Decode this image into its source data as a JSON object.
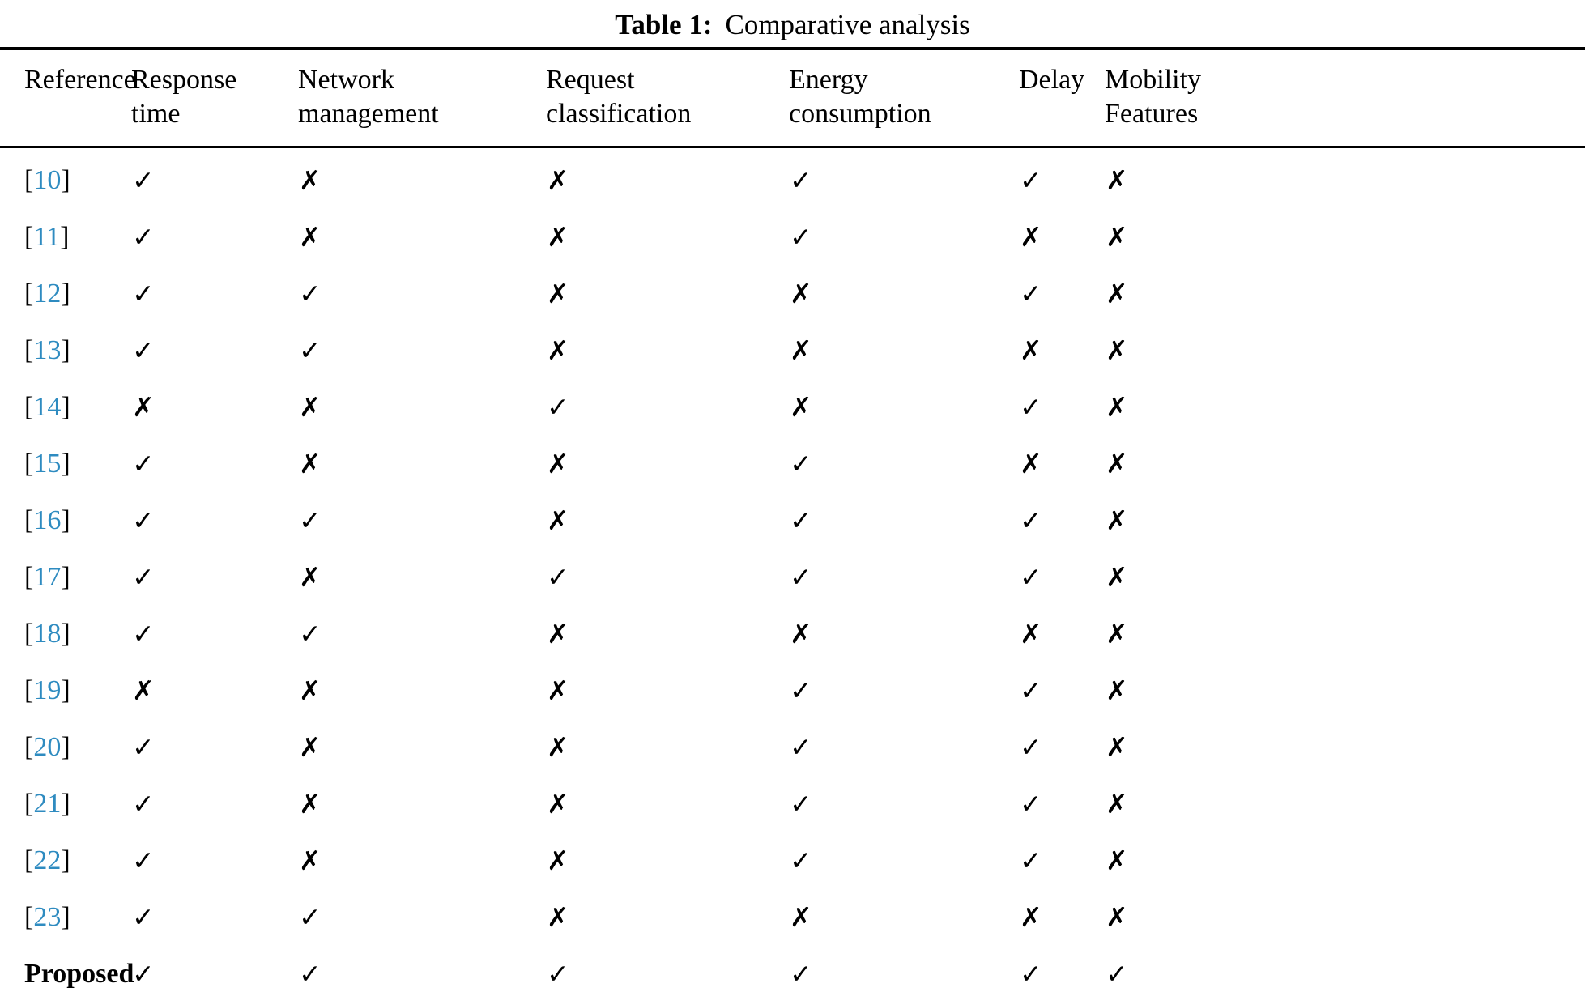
{
  "caption": {
    "label": "Table 1:",
    "text": "Comparative analysis"
  },
  "colors": {
    "citation_blue": "#2e8bc0",
    "text_black": "#000000",
    "background": "#ffffff"
  },
  "table": {
    "bracket_open": "[",
    "bracket_close": "]",
    "columns": [
      {
        "id": "reference",
        "label": "Reference"
      },
      {
        "id": "response-time",
        "label": "Response\ntime"
      },
      {
        "id": "network-management",
        "label": "Network\nmanagement"
      },
      {
        "id": "request-classification",
        "label": "Request\nclassification"
      },
      {
        "id": "energy-consumption",
        "label": "Energy\nconsumption"
      },
      {
        "id": "delay",
        "label": "Delay"
      },
      {
        "id": "mobility-features",
        "label": "Mobility\nFeatures"
      }
    ],
    "rows": [
      {
        "ref": "10",
        "brackets": true,
        "marks": [
          "✓",
          "✗",
          "✗",
          "✓",
          "✓",
          "✗"
        ]
      },
      {
        "ref": "11",
        "brackets": true,
        "marks": [
          "✓",
          "✗",
          "✗",
          "✓",
          "✗",
          "✗"
        ]
      },
      {
        "ref": "12",
        "brackets": true,
        "marks": [
          "✓",
          "✓",
          "✗",
          "✗",
          "✓",
          "✗"
        ]
      },
      {
        "ref": "13",
        "brackets": true,
        "marks": [
          "✓",
          "✓",
          "✗",
          "✗",
          "✗",
          "✗"
        ]
      },
      {
        "ref": "14",
        "brackets": true,
        "marks": [
          "✗",
          "✗",
          "✓",
          "✗",
          "✓",
          "✗"
        ]
      },
      {
        "ref": "15",
        "brackets": true,
        "marks": [
          "✓",
          "✗",
          "✗",
          "✓",
          "✗",
          "✗"
        ]
      },
      {
        "ref": "16",
        "brackets": true,
        "marks": [
          "✓",
          "✓",
          "✗",
          "✓",
          "✓",
          "✗"
        ]
      },
      {
        "ref": "17",
        "brackets": true,
        "marks": [
          "✓",
          "✗",
          "✓",
          "✓",
          "✓",
          "✗"
        ]
      },
      {
        "ref": "18",
        "brackets": true,
        "marks": [
          "✓",
          "✓",
          "✗",
          "✗",
          "✗",
          "✗"
        ]
      },
      {
        "ref": "19",
        "brackets": true,
        "marks": [
          "✗",
          "✗",
          "✗",
          "✓",
          "✓",
          "✗"
        ]
      },
      {
        "ref": "20",
        "brackets": true,
        "marks": [
          "✓",
          "✗",
          "✗",
          "✓",
          "✓",
          "✗"
        ]
      },
      {
        "ref": "21",
        "brackets": true,
        "marks": [
          "✓",
          "✗",
          "✗",
          "✓",
          "✓",
          "✗"
        ]
      },
      {
        "ref": "22",
        "brackets": true,
        "marks": [
          "✓",
          "✗",
          "✗",
          "✓",
          "✓",
          "✗"
        ]
      },
      {
        "ref": "23",
        "brackets": true,
        "marks": [
          "✓",
          "✓",
          "✗",
          "✗",
          "✗",
          "✗"
        ]
      },
      {
        "ref": "Proposed",
        "brackets": false,
        "marks": [
          "✓",
          "✓",
          "✓",
          "✓",
          "✓",
          "✓"
        ]
      }
    ]
  }
}
